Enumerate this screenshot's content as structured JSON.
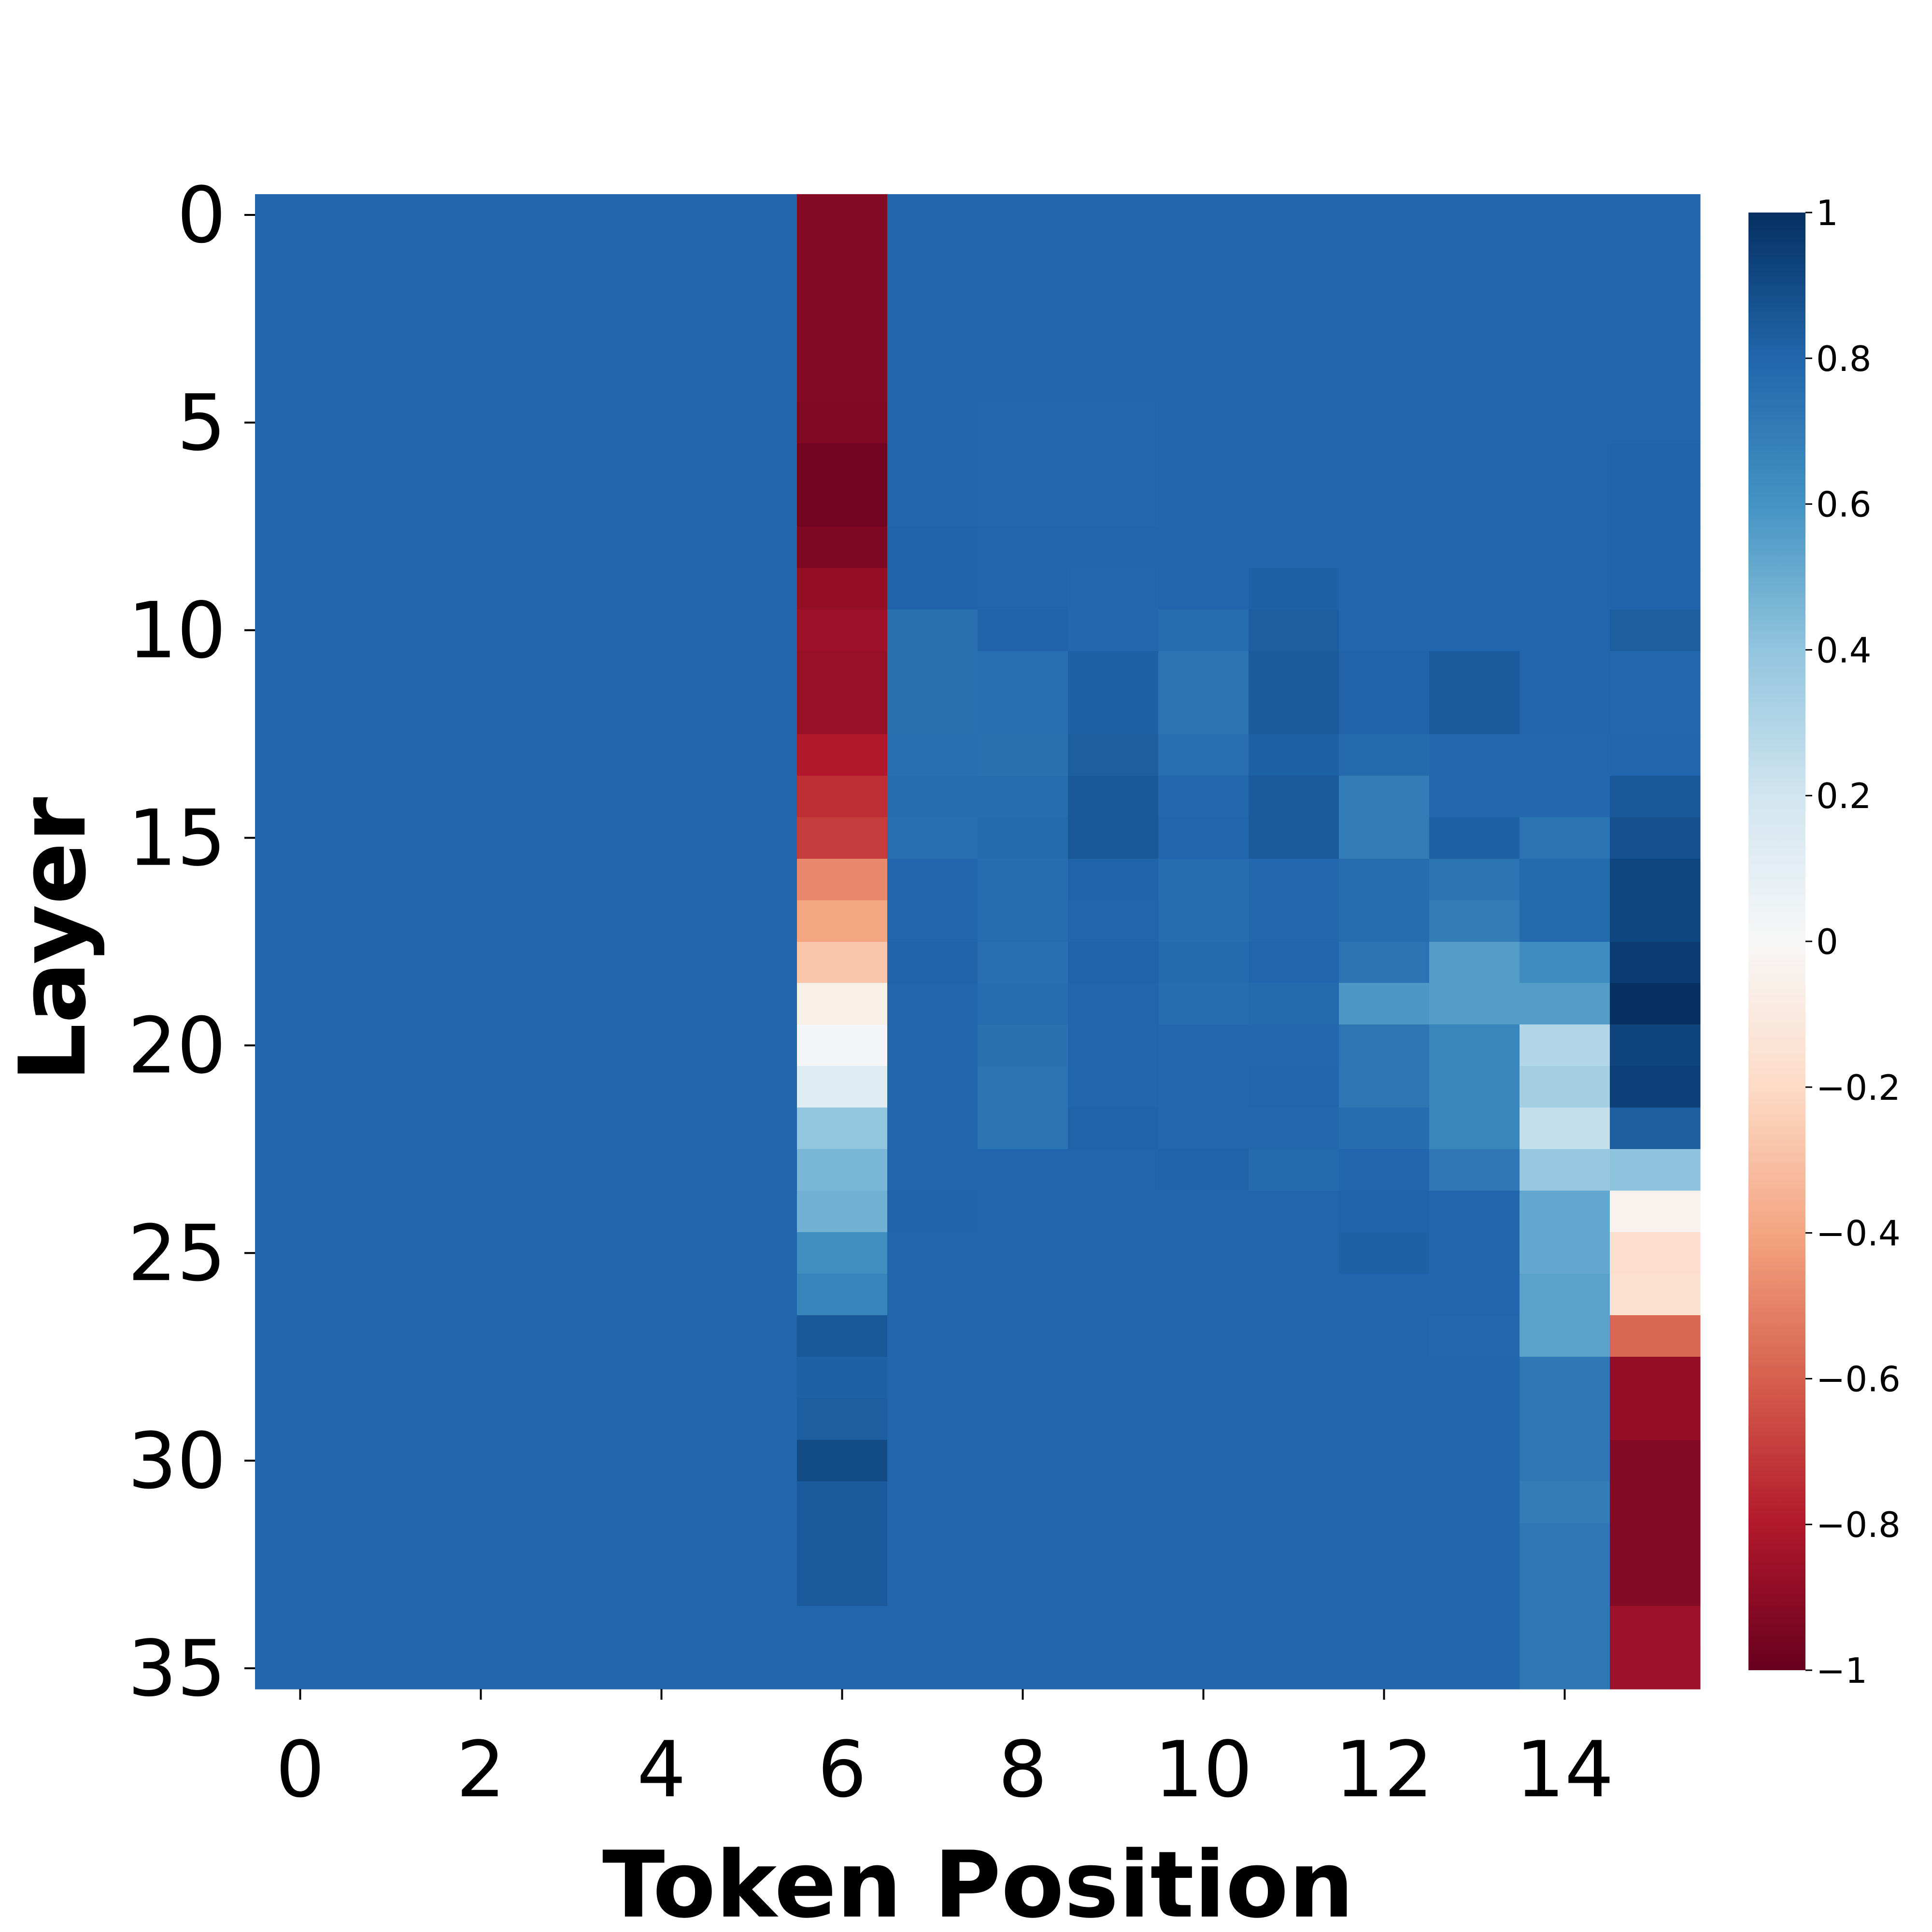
{
  "chart_data": {
    "type": "heatmap",
    "title": "",
    "xlabel": "Token Position",
    "ylabel": "Layer",
    "x_tick_labels": [
      "0",
      "2",
      "4",
      "6",
      "8",
      "10",
      "12",
      "14"
    ],
    "x_tick_values": [
      0,
      2,
      4,
      6,
      8,
      10,
      12,
      14
    ],
    "y_tick_labels": [
      "0",
      "5",
      "10",
      "15",
      "20",
      "25",
      "30",
      "35"
    ],
    "y_tick_values": [
      0,
      5,
      10,
      15,
      20,
      25,
      30,
      35
    ],
    "n_layers": 36,
    "n_tokens": 16,
    "colormap": "RdBu",
    "vmin": -1,
    "vmax": 1,
    "colorbar": {
      "tick_labels": [
        "1",
        "0.8",
        "0.6",
        "0.4",
        "0.2",
        "0",
        "−0.2",
        "−0.4",
        "−0.6",
        "−0.8",
        "−1"
      ],
      "tick_values": [
        1,
        0.8,
        0.6,
        0.4,
        0.2,
        0,
        -0.2,
        -0.4,
        -0.6,
        -0.8,
        -1
      ]
    },
    "default_value": 0.8,
    "columns": [
      {
        "token": 6,
        "values": [
          -0.92,
          -0.92,
          -0.92,
          -0.92,
          -0.92,
          -0.93,
          -0.97,
          -0.97,
          -0.94,
          -0.88,
          -0.86,
          -0.87,
          -0.87,
          -0.8,
          -0.74,
          -0.7,
          -0.48,
          -0.4,
          -0.28,
          -0.06,
          0.02,
          0.12,
          0.4,
          0.46,
          0.48,
          0.62,
          0.67,
          0.85,
          0.82,
          0.83,
          0.9,
          0.84,
          0.84,
          0.84,
          0.8,
          0.8
        ]
      },
      {
        "token": 7,
        "values": [
          0.8,
          0.8,
          0.8,
          0.8,
          0.8,
          0.8,
          0.8,
          0.8,
          0.81,
          0.81,
          0.75,
          0.75,
          0.75,
          0.76,
          0.77,
          0.76,
          0.8,
          0.8,
          0.81,
          0.8,
          0.8,
          0.8,
          0.8,
          0.8,
          0.81,
          0.8,
          0.8,
          0.8,
          0.8,
          0.8,
          0.8,
          0.8,
          0.8,
          0.8,
          0.8,
          0.8
        ]
      },
      {
        "token": 8,
        "values": [
          0.8,
          0.8,
          0.8,
          0.8,
          0.8,
          0.79,
          0.79,
          0.79,
          0.8,
          0.8,
          0.81,
          0.76,
          0.76,
          0.75,
          0.77,
          0.78,
          0.77,
          0.77,
          0.76,
          0.77,
          0.75,
          0.74,
          0.74,
          0.8,
          0.8,
          0.8,
          0.8,
          0.8,
          0.8,
          0.8,
          0.8,
          0.8,
          0.8,
          0.8,
          0.8,
          0.8
        ]
      },
      {
        "token": 9,
        "values": [
          0.8,
          0.8,
          0.8,
          0.8,
          0.8,
          0.79,
          0.79,
          0.79,
          0.8,
          0.79,
          0.79,
          0.82,
          0.82,
          0.83,
          0.85,
          0.85,
          0.81,
          0.8,
          0.81,
          0.8,
          0.8,
          0.8,
          0.81,
          0.8,
          0.8,
          0.8,
          0.8,
          0.8,
          0.8,
          0.8,
          0.8,
          0.8,
          0.8,
          0.8,
          0.8,
          0.8
        ]
      },
      {
        "token": 10,
        "values": [
          0.8,
          0.8,
          0.8,
          0.8,
          0.8,
          0.8,
          0.8,
          0.8,
          0.8,
          0.8,
          0.77,
          0.74,
          0.74,
          0.76,
          0.79,
          0.8,
          0.77,
          0.77,
          0.78,
          0.77,
          0.79,
          0.79,
          0.79,
          0.81,
          0.8,
          0.8,
          0.8,
          0.8,
          0.8,
          0.8,
          0.8,
          0.8,
          0.8,
          0.8,
          0.8,
          0.8
        ]
      },
      {
        "token": 11,
        "values": [
          0.8,
          0.8,
          0.8,
          0.8,
          0.8,
          0.8,
          0.8,
          0.8,
          0.8,
          0.82,
          0.83,
          0.84,
          0.84,
          0.82,
          0.84,
          0.84,
          0.79,
          0.79,
          0.8,
          0.78,
          0.79,
          0.8,
          0.79,
          0.78,
          0.8,
          0.8,
          0.8,
          0.8,
          0.8,
          0.8,
          0.8,
          0.8,
          0.8,
          0.8,
          0.8,
          0.8
        ]
      },
      {
        "token": 12,
        "values": [
          0.8,
          0.8,
          0.8,
          0.8,
          0.8,
          0.8,
          0.8,
          0.8,
          0.8,
          0.8,
          0.8,
          0.81,
          0.81,
          0.78,
          0.7,
          0.7,
          0.77,
          0.77,
          0.74,
          0.58,
          0.73,
          0.73,
          0.77,
          0.8,
          0.81,
          0.82,
          0.8,
          0.8,
          0.8,
          0.8,
          0.8,
          0.8,
          0.8,
          0.8,
          0.8,
          0.8
        ]
      },
      {
        "token": 13,
        "values": [
          0.8,
          0.8,
          0.8,
          0.8,
          0.8,
          0.8,
          0.8,
          0.8,
          0.8,
          0.8,
          0.8,
          0.84,
          0.84,
          0.79,
          0.79,
          0.82,
          0.74,
          0.7,
          0.56,
          0.56,
          0.66,
          0.66,
          0.66,
          0.72,
          0.8,
          0.8,
          0.8,
          0.79,
          0.8,
          0.8,
          0.8,
          0.8,
          0.8,
          0.8,
          0.8,
          0.8
        ]
      },
      {
        "token": 14,
        "values": [
          0.8,
          0.8,
          0.8,
          0.8,
          0.8,
          0.8,
          0.8,
          0.8,
          0.8,
          0.8,
          0.8,
          0.8,
          0.8,
          0.79,
          0.79,
          0.74,
          0.78,
          0.78,
          0.63,
          0.56,
          0.3,
          0.34,
          0.24,
          0.38,
          0.52,
          0.52,
          0.54,
          0.54,
          0.72,
          0.72,
          0.72,
          0.7,
          0.72,
          0.72,
          0.72,
          0.72
        ]
      },
      {
        "token": 15,
        "values": [
          0.8,
          0.8,
          0.8,
          0.8,
          0.8,
          0.8,
          0.81,
          0.81,
          0.81,
          0.81,
          0.83,
          0.79,
          0.79,
          0.8,
          0.85,
          0.88,
          0.92,
          0.92,
          0.96,
          1.0,
          0.93,
          0.94,
          0.83,
          0.41,
          -0.04,
          -0.18,
          -0.16,
          -0.58,
          -0.88,
          -0.88,
          -0.92,
          -0.92,
          -0.92,
          -0.92,
          -0.86,
          -0.86
        ]
      }
    ]
  }
}
